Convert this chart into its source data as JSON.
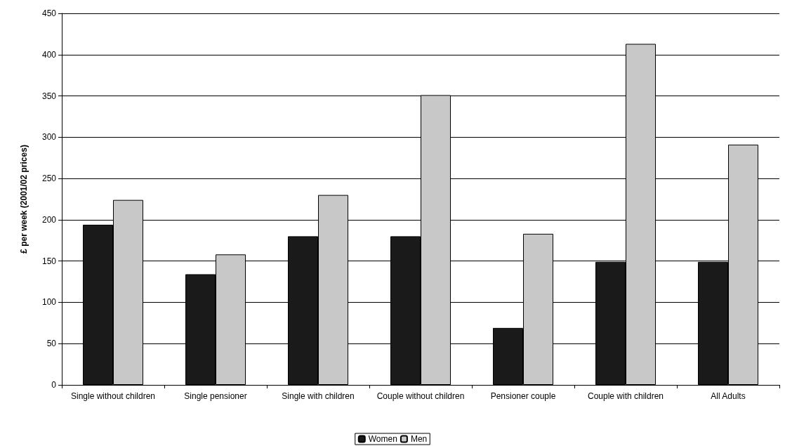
{
  "chart_data": {
    "type": "bar",
    "ylabel": "£ per week (2001/02 prices)",
    "categories": [
      "Single without children",
      "Single pensioner",
      "Single with children",
      "Couple without children",
      "Pensioner couple",
      "Couple with children",
      "All Adults"
    ],
    "series": [
      {
        "name": "Women",
        "color": "#1a1a1a",
        "values": [
          194,
          134,
          180,
          180,
          69,
          149,
          149
        ]
      },
      {
        "name": "Men",
        "color": "#c8c8c8",
        "values": [
          224,
          158,
          230,
          351,
          183,
          413,
          291
        ]
      }
    ],
    "ylim": [
      0,
      450
    ],
    "yticks": [
      0,
      50,
      100,
      150,
      200,
      250,
      300,
      350,
      400,
      450
    ],
    "grid": "y",
    "legend": "bottom"
  }
}
